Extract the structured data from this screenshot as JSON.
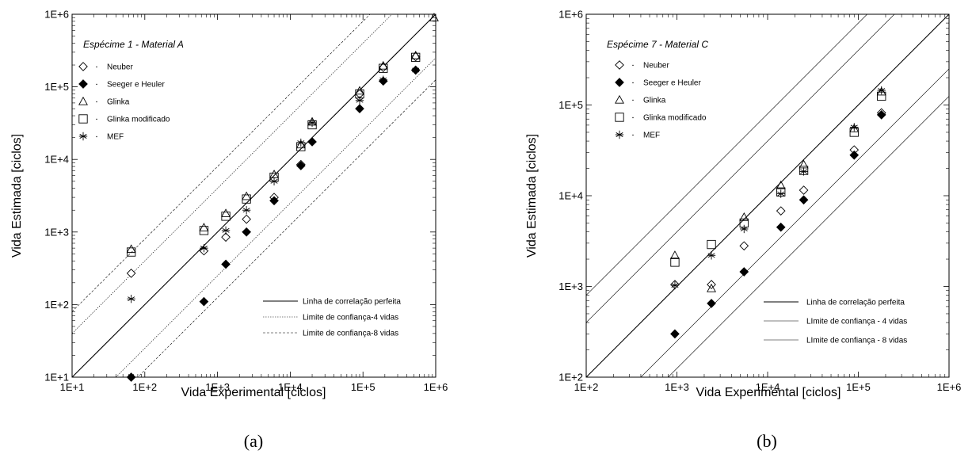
{
  "chart_data": [
    {
      "type": "scatter",
      "panel_label": "(a)",
      "title": "Espécime 1 - Material A",
      "xlabel": "Vida Experimental [ciclos]",
      "ylabel": "Vida Estimada [ciclos]",
      "xscale": "log",
      "yscale": "log",
      "xlim": [
        10,
        1000000
      ],
      "ylim": [
        10,
        1000000
      ],
      "xticks": [
        "1E+1",
        "1E+2",
        "1E+3",
        "1E+4",
        "1E+5",
        "1E+6"
      ],
      "yticks": [
        "1E+1",
        "1E+2",
        "1E+3",
        "1E+4",
        "1E+5",
        "1E+6"
      ],
      "reference_lines": [
        {
          "label": "Linha de correlação perfeita",
          "factor": 1,
          "style": "solid"
        },
        {
          "label": "Limite de confiança-4 vidas",
          "factor": 4,
          "style": "dotted"
        },
        {
          "label": "Limite de confiança-8 vidas",
          "factor": 8,
          "style": "dashed"
        }
      ],
      "series": [
        {
          "name": "Neuber",
          "marker": "diamond-open",
          "points": [
            [
              65,
              270
            ],
            [
              650,
              550
            ],
            [
              1300,
              850
            ],
            [
              2500,
              1500
            ],
            [
              6000,
              3000
            ],
            [
              14000,
              8500
            ],
            [
              90000,
              80000
            ],
            [
              190000,
              185000
            ],
            [
              530000,
              260000
            ]
          ]
        },
        {
          "name": "Seeger e Heuler",
          "marker": "diamond-filled",
          "points": [
            [
              65,
              10
            ],
            [
              650,
              110
            ],
            [
              1300,
              360
            ],
            [
              2500,
              1000
            ],
            [
              6000,
              2700
            ],
            [
              14000,
              8200
            ],
            [
              20000,
              17500
            ],
            [
              90000,
              50000
            ],
            [
              190000,
              120000
            ],
            [
              530000,
              170000
            ]
          ]
        },
        {
          "name": "Glinka",
          "marker": "triangle-open",
          "points": [
            [
              65,
              580
            ],
            [
              650,
              1150
            ],
            [
              1300,
              1800
            ],
            [
              2500,
              3100
            ],
            [
              6000,
              6200
            ],
            [
              14000,
              16000
            ],
            [
              20000,
              33000
            ],
            [
              90000,
              88000
            ],
            [
              190000,
              195000
            ],
            [
              530000,
              270000
            ],
            [
              950000,
              900000
            ]
          ]
        },
        {
          "name": "Glinka modificado",
          "marker": "square-open",
          "points": [
            [
              65,
              530
            ],
            [
              650,
              1050
            ],
            [
              1300,
              1650
            ],
            [
              2500,
              2850
            ],
            [
              6000,
              5700
            ],
            [
              14000,
              15000
            ],
            [
              20000,
              30000
            ],
            [
              90000,
              80000
            ],
            [
              190000,
              180000
            ],
            [
              530000,
              255000
            ]
          ]
        },
        {
          "name": "MEF",
          "marker": "asterisk",
          "points": [
            [
              65,
              120
            ],
            [
              650,
              600
            ],
            [
              1300,
              1050
            ],
            [
              2500,
              2000
            ],
            [
              6000,
              5000
            ],
            [
              14000,
              17000
            ],
            [
              20000,
              32000
            ],
            [
              90000,
              65000
            ],
            [
              190000,
              125000
            ],
            [
              530000,
              170000
            ]
          ]
        }
      ]
    },
    {
      "type": "scatter",
      "panel_label": "(b)",
      "title": "Espécime 7 - Material C",
      "xlabel": "Vida Experimental [ciclos]",
      "ylabel": "Vida Estimada [ciclos]",
      "xscale": "log",
      "yscale": "log",
      "xlim": [
        100,
        1000000
      ],
      "ylim": [
        100,
        1000000
      ],
      "xticks": [
        "1E+2",
        "1E+3",
        "1E+4",
        "1E+5",
        "1E+6"
      ],
      "yticks": [
        "1E+2",
        "1E+3",
        "1E+4",
        "1E+5",
        "1E+6"
      ],
      "reference_lines": [
        {
          "label": "Linha de correlação perfeita",
          "factor": 1,
          "style": "solid"
        },
        {
          "label": "LImite de confiança - 4 vidas",
          "factor": 4,
          "style": "solid"
        },
        {
          "label": "LImite de confiança - 8 vidas",
          "factor": 8,
          "style": "solid"
        }
      ],
      "series": [
        {
          "name": "Neuber",
          "marker": "diamond-open",
          "points": [
            [
              950,
              1050
            ],
            [
              2400,
              1050
            ],
            [
              5500,
              2800
            ],
            [
              14000,
              6800
            ],
            [
              25000,
              11500
            ],
            [
              90000,
              32000
            ],
            [
              180000,
              82000
            ]
          ]
        },
        {
          "name": "Seeger e Heuler",
          "marker": "diamond-filled",
          "points": [
            [
              950,
              300
            ],
            [
              2400,
              650
            ],
            [
              5500,
              1450
            ],
            [
              14000,
              4500
            ],
            [
              25000,
              9000
            ],
            [
              90000,
              28000
            ],
            [
              180000,
              78000
            ]
          ]
        },
        {
          "name": "Glinka",
          "marker": "triangle-open",
          "points": [
            [
              950,
              2200
            ],
            [
              2400,
              950
            ],
            [
              5500,
              5800
            ],
            [
              14000,
              13000
            ],
            [
              25000,
              22000
            ],
            [
              90000,
              55000
            ],
            [
              180000,
              140000
            ]
          ]
        },
        {
          "name": "Glinka modificado",
          "marker": "square-open",
          "points": [
            [
              950,
              1850
            ],
            [
              2400,
              2900
            ],
            [
              5500,
              5000
            ],
            [
              14000,
              11000
            ],
            [
              25000,
              19000
            ],
            [
              90000,
              50000
            ],
            [
              180000,
              125000
            ]
          ]
        },
        {
          "name": "MEF",
          "marker": "asterisk",
          "points": [
            [
              950,
              1030
            ],
            [
              2400,
              2200
            ],
            [
              5500,
              4300
            ],
            [
              14000,
              10500
            ],
            [
              25000,
              18500
            ],
            [
              90000,
              57000
            ],
            [
              180000,
              145000
            ]
          ]
        }
      ]
    }
  ]
}
